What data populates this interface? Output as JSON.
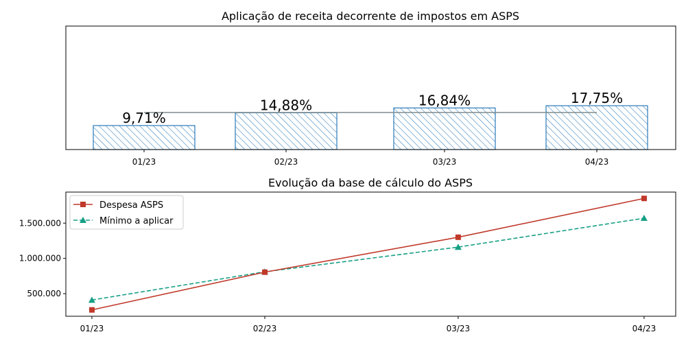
{
  "chart_data": [
    {
      "type": "bar",
      "title": "Aplicação de receita decorrente de impostos em ASPS",
      "categories": [
        "01/23",
        "02/23",
        "03/23",
        "04/23"
      ],
      "values": [
        9.71,
        14.88,
        16.84,
        17.75
      ],
      "value_labels": [
        "9,71%",
        "14,88%",
        "16,84%",
        "17,75%"
      ],
      "reference_line": 15,
      "ylim": [
        0,
        50
      ],
      "bar_style": "hatched",
      "colors": {
        "bar_edge": "#2a7ab9",
        "hatch": "#2a7ab9",
        "reference_line": "#7f8c8d"
      },
      "grid": false
    },
    {
      "type": "line",
      "title": "Evolução da base de cálculo do ASPS",
      "x": [
        "01/23",
        "02/23",
        "03/23",
        "04/23"
      ],
      "x_positions": [
        0,
        0.93,
        1.97,
        2.97
      ],
      "yticks": [
        "500.000",
        "1.000.000",
        "1.500.000"
      ],
      "ytick_values": [
        500000,
        1000000,
        1500000
      ],
      "ylim": [
        180000,
        1940000
      ],
      "series": [
        {
          "name": "Despesa ASPS",
          "values": [
            270000,
            805000,
            1300000,
            1850000
          ],
          "color": "#c0392b",
          "marker": "square",
          "linestyle": "solid"
        },
        {
          "name": "Mínimo a aplicar",
          "values": [
            410000,
            810000,
            1160000,
            1570000
          ],
          "color": "#16a085",
          "marker": "triangle",
          "linestyle": "dashed"
        }
      ],
      "legend_position": "upper-left",
      "grid": false
    }
  ]
}
